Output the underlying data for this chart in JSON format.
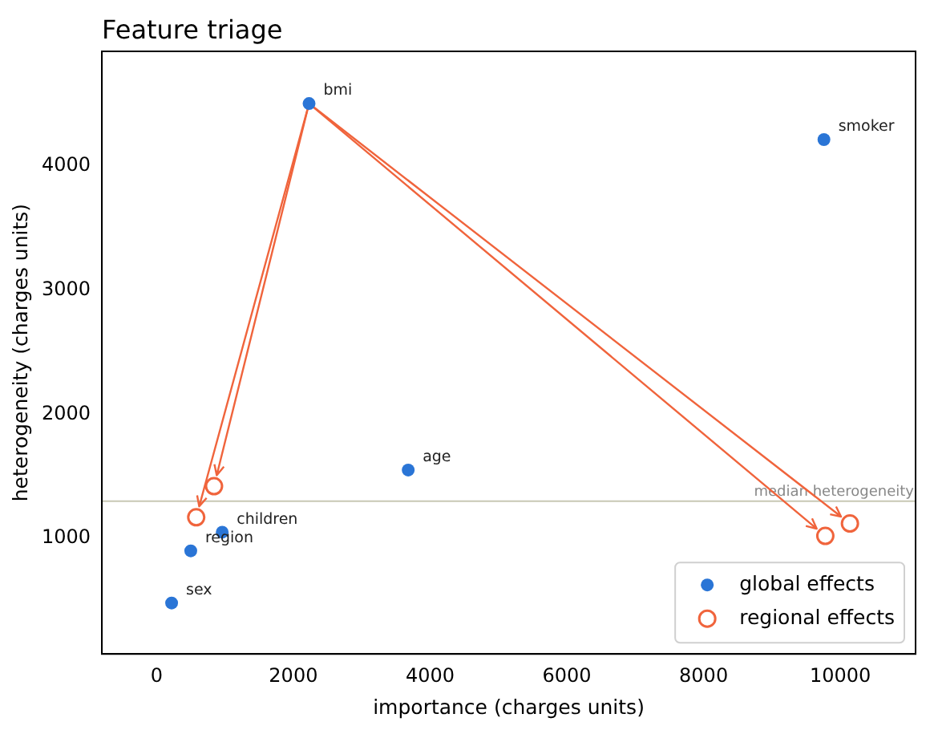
{
  "chart_data": {
    "type": "scatter",
    "title": "Feature triage",
    "xlabel": "importance (charges units)",
    "ylabel": "heterogeneity (charges units)",
    "series": [
      {
        "name": "global effects",
        "color": "#2a75d6",
        "marker": "circle",
        "x": [
          2230,
          9760,
          3680,
          960,
          500,
          220
        ],
        "values": [
          4500,
          4210,
          1550,
          1050,
          900,
          480
        ]
      },
      {
        "name": "regional effects",
        "color": "#f0643c",
        "marker": "circle",
        "x": [
          840,
          580,
          9780,
          10140
        ],
        "values": [
          1420,
          1170,
          1020,
          1120
        ]
      }
    ],
    "annotations": [
      {
        "text": "bmi",
        "x": 2230,
        "y": 4500
      },
      {
        "text": "smoker",
        "x": 9760,
        "y": 4210
      },
      {
        "text": "age",
        "x": 3680,
        "y": 1550
      },
      {
        "text": "children",
        "x": 960,
        "y": 1050
      },
      {
        "text": "region",
        "x": 500,
        "y": 900
      },
      {
        "text": "sex",
        "x": 220,
        "y": 480
      }
    ],
    "ref_lines": [
      {
        "axis": "y",
        "value": 1300,
        "label": "median heterogeneity",
        "color": "#c8c8b4"
      }
    ],
    "xlim": [
      -800,
      11100
    ],
    "ylim": [
      70,
      4920
    ],
    "xticks": [
      0,
      2000,
      4000,
      6000,
      8000,
      10000
    ],
    "yticks": [
      1000,
      2000,
      3000,
      4000
    ],
    "grid": false,
    "legend": "bottom right"
  }
}
